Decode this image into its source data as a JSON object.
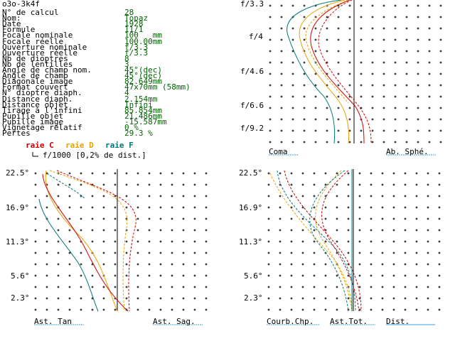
{
  "title": "o3o-3k4f",
  "params": [
    {
      "label": "N° de calcul",
      "value": "28"
    },
    {
      "label": "Nom:",
      "value": "Topaz"
    },
    {
      "label": "Date",
      "value": "1928"
    },
    {
      "label": "Formule",
      "value": "11/1"
    },
    {
      "label": "Focale nominale",
      "value": "100   mm"
    },
    {
      "label": "Focale réelle",
      "value": "100.00mm"
    },
    {
      "label": "Ouverture nominale",
      "value": "f/3.3"
    },
    {
      "label": "Ouverture réelle",
      "value": "f/3.3"
    },
    {
      "label": "Nb de dioptres",
      "value": "8"
    },
    {
      "label": "Nb de lentilles",
      "value": "3"
    },
    {
      "label": "Angle de champ nom.",
      "value": "45°(dec)"
    },
    {
      "label": "Angle de champ",
      "value": "45°(dec)"
    },
    {
      "label": "Diagonale image",
      "value": "82.649mm"
    },
    {
      "label": "Format couvert",
      "value": "47x70mm (58mm)"
    },
    {
      "label": "N° dioptre diaph.",
      "value": "4"
    },
    {
      "label": "Distance diaph.",
      "value": "2.154mm"
    },
    {
      "label": "Distance objet",
      "value": "Infini"
    },
    {
      "label": "Tirage à l'infini",
      "value": "85.854mm"
    },
    {
      "label": "Pupille objet",
      "value": "21.486mm"
    },
    {
      "label": "Pupille image",
      "value": "-15.587mm"
    },
    {
      "label": "Vignetage relatif",
      "value": "0 %"
    },
    {
      "label": "Pertes",
      "value": "29.3 %"
    }
  ],
  "scale_note": "f/1000 [0,2% de dist.]",
  "legend": {
    "c": "raie C",
    "d": "raie D",
    "f": "raie F"
  },
  "colors": {
    "c": "#cc0000",
    "d": "#e8a000",
    "f": "#007878",
    "text": "#006400",
    "axis": "#000000",
    "underline": "#3aa0d8"
  },
  "coma": {
    "ticks": [
      "f/3.3",
      "f/4",
      "f/4.6",
      "f/6.6",
      "f/9.2"
    ],
    "left_label": "Coma",
    "right_label": "Ab. Sphé."
  },
  "field": {
    "ticks": [
      "22.5°",
      "16.9°",
      "11.3°",
      "5.6°",
      "2.3°"
    ]
  },
  "astig": {
    "left_label": "Ast. Tan",
    "right_label": "Ast. Sag."
  },
  "curv": {
    "label1": "Courb.Chp.",
    "label2": "Ast.Tot.",
    "label3": "Dist."
  }
}
